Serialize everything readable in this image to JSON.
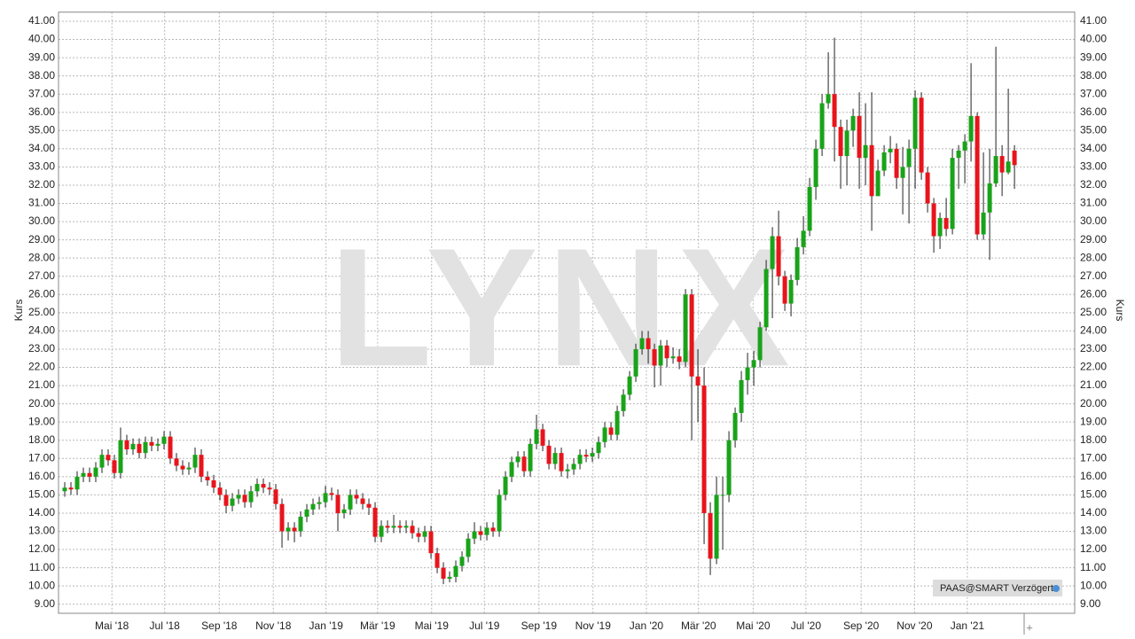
{
  "chart_data": {
    "type": "candlestick",
    "watermark": "LYNX",
    "ylabel": "Kurs",
    "info_label": "PAAS@SMART Verzögert",
    "up_color": "#19a319",
    "down_color": "#e8141c",
    "grid": true,
    "xlim": [
      -1,
      162.7
    ],
    "xticks": [
      {
        "value": 7.6,
        "label": "Mai '18"
      },
      {
        "value": 16.1,
        "label": "Jul '18"
      },
      {
        "value": 24.9,
        "label": "Sep '18"
      },
      {
        "value": 33.6,
        "label": "Nov '18"
      },
      {
        "value": 42.1,
        "label": "Jan '19"
      },
      {
        "value": 50.4,
        "label": "Mär '19"
      },
      {
        "value": 59.1,
        "label": "Mai '19"
      },
      {
        "value": 67.6,
        "label": "Jul '19"
      },
      {
        "value": 76.4,
        "label": "Sep '19"
      },
      {
        "value": 85.1,
        "label": "Nov '19"
      },
      {
        "value": 93.7,
        "label": "Jan '20"
      },
      {
        "value": 102.1,
        "label": "Mär '20"
      },
      {
        "value": 110.9,
        "label": "Mai '20"
      },
      {
        "value": 119.4,
        "label": "Jul '20"
      },
      {
        "value": 128.3,
        "label": "Sep '20"
      },
      {
        "value": 136.9,
        "label": "Nov '20"
      },
      {
        "value": 145.4,
        "label": "Jan '21"
      }
    ],
    "ylim": [
      8.5,
      41.5
    ],
    "yticks": [
      {
        "value": 9,
        "label": "9.00"
      },
      {
        "value": 10,
        "label": "10.00"
      },
      {
        "value": 11,
        "label": "11.00"
      },
      {
        "value": 12,
        "label": "12.00"
      },
      {
        "value": 13,
        "label": "13.00"
      },
      {
        "value": 14,
        "label": "14.00"
      },
      {
        "value": 15,
        "label": "15.00"
      },
      {
        "value": 16,
        "label": "16.00"
      },
      {
        "value": 17,
        "label": "17.00"
      },
      {
        "value": 18,
        "label": "18.00"
      },
      {
        "value": 19,
        "label": "19.00"
      },
      {
        "value": 20,
        "label": "20.00"
      },
      {
        "value": 21,
        "label": "21.00"
      },
      {
        "value": 22,
        "label": "22.00"
      },
      {
        "value": 23,
        "label": "23.00"
      },
      {
        "value": 24,
        "label": "24.00"
      },
      {
        "value": 25,
        "label": "25.00"
      },
      {
        "value": 26,
        "label": "26.00"
      },
      {
        "value": 27,
        "label": "27.00"
      },
      {
        "value": 28,
        "label": "28.00"
      },
      {
        "value": 29,
        "label": "29.00"
      },
      {
        "value": 30,
        "label": "30.00"
      },
      {
        "value": 31,
        "label": "31.00"
      },
      {
        "value": 32,
        "label": "32.00"
      },
      {
        "value": 33,
        "label": "33.00"
      },
      {
        "value": 34,
        "label": "34.00"
      },
      {
        "value": 35,
        "label": "35.00"
      },
      {
        "value": 36,
        "label": "36.00"
      },
      {
        "value": 37,
        "label": "37.00"
      },
      {
        "value": 38,
        "label": "38.00"
      },
      {
        "value": 39,
        "label": "39.00"
      },
      {
        "value": 40,
        "label": "40.00"
      },
      {
        "value": 41,
        "label": "41.00"
      }
    ],
    "open": [
      15.2,
      15.4,
      15.3,
      16.0,
      16.2,
      16.0,
      16.5,
      17.2,
      16.9,
      16.2,
      18.0,
      17.5,
      17.8,
      17.3,
      17.9,
      17.7,
      17.8,
      18.2,
      17.0,
      16.6,
      16.4,
      16.5,
      17.2,
      16.0,
      15.8,
      15.4,
      15.0,
      14.4,
      14.8,
      15.0,
      14.6,
      15.2,
      15.6,
      15.4,
      15.3,
      14.5,
      13.0,
      13.2,
      13.0,
      13.8,
      14.2,
      14.5,
      14.6,
      15.1,
      15.0,
      14.0,
      14.2,
      15.0,
      14.8,
      14.5,
      14.3,
      12.7,
      13.3,
      13.2,
      13.3,
      13.2,
      13.3,
      12.9,
      12.7,
      13.0,
      11.8,
      11.0,
      10.4,
      10.5,
      11.1,
      11.6,
      12.6,
      13.0,
      12.8,
      13.2,
      13.0,
      15.0,
      16.0,
      16.8,
      17.1,
      16.3,
      17.8,
      18.6,
      17.7,
      16.7,
      17.3,
      16.3,
      16.4,
      16.7,
      17.2,
      17.1,
      17.3,
      17.9,
      18.7,
      18.3,
      19.6,
      20.5,
      21.5,
      23.0,
      23.6,
      23.0,
      22.1,
      23.2,
      22.5,
      22.6,
      22.3,
      26.0,
      21.5,
      21.0,
      14.0,
      11.5,
      15.0,
      15.0,
      18.0,
      19.5,
      21.3,
      22.0,
      22.4,
      24.2,
      27.4,
      29.2,
      27.0,
      25.5,
      26.8,
      28.6,
      29.5,
      31.9,
      34.0,
      36.5,
      37.0,
      35.2,
      33.6,
      35.0,
      35.8,
      33.5,
      34.2,
      31.4,
      32.8,
      33.8,
      34.0,
      32.4,
      33.0,
      34.0,
      36.8,
      32.7,
      31.0,
      29.2,
      30.2,
      29.6,
      33.5,
      33.9,
      34.4,
      35.8,
      29.3,
      30.5,
      32.1,
      33.6,
      32.7,
      33.9
    ],
    "high": [
      15.7,
      15.7,
      16.3,
      16.5,
      16.5,
      16.8,
      17.5,
      17.5,
      17.2,
      18.7,
      18.3,
      18.1,
      18.1,
      18.2,
      18.2,
      18.1,
      18.5,
      18.5,
      17.3,
      16.9,
      16.8,
      17.6,
      17.5,
      16.3,
      16.1,
      15.7,
      15.3,
      15.1,
      15.3,
      15.3,
      15.5,
      15.9,
      15.9,
      15.7,
      15.6,
      14.8,
      13.5,
      13.5,
      14.1,
      14.5,
      14.8,
      14.9,
      15.5,
      15.4,
      15.3,
      14.5,
      15.3,
      15.3,
      15.1,
      14.8,
      14.6,
      13.6,
      13.6,
      13.9,
      13.6,
      13.6,
      13.6,
      13.2,
      13.3,
      13.3,
      12.1,
      11.3,
      10.8,
      11.4,
      11.9,
      12.9,
      13.5,
      13.3,
      13.5,
      13.5,
      15.3,
      16.3,
      17.1,
      17.4,
      17.4,
      18.1,
      19.4,
      18.9,
      18.0,
      17.6,
      17.6,
      16.7,
      17.0,
      17.5,
      17.5,
      17.6,
      18.2,
      19.0,
      19.0,
      19.9,
      20.8,
      21.8,
      23.3,
      24.0,
      24.0,
      23.3,
      23.5,
      23.5,
      23.1,
      23.0,
      26.3,
      26.3,
      23.0,
      22.0,
      14.6,
      16.0,
      16.0,
      18.5,
      19.8,
      21.8,
      22.8,
      22.9,
      24.5,
      27.9,
      29.7,
      30.6,
      27.3,
      27.1,
      29.1,
      30.3,
      32.4,
      34.5,
      37.0,
      39.3,
      40.1,
      35.6,
      35.6,
      36.2,
      37.1,
      36.5,
      37.1,
      33.4,
      34.2,
      34.7,
      34.3,
      34.1,
      34.5,
      37.2,
      37.1,
      33.0,
      31.3,
      30.5,
      31.3,
      34.0,
      34.2,
      34.8,
      38.7,
      36.0,
      33.8,
      34.0,
      39.6,
      34.2,
      37.3,
      34.2
    ],
    "low": [
      14.9,
      15.0,
      15.0,
      15.7,
      15.7,
      15.7,
      16.2,
      16.6,
      15.9,
      15.9,
      17.2,
      17.2,
      17.0,
      17.0,
      17.4,
      17.4,
      17.5,
      16.7,
      16.3,
      16.1,
      16.1,
      16.2,
      15.7,
      15.5,
      15.1,
      14.7,
      14.0,
      14.1,
      14.5,
      14.3,
      14.3,
      14.9,
      15.1,
      15.0,
      14.2,
      12.1,
      12.5,
      12.4,
      12.7,
      13.5,
      13.9,
      14.2,
      14.3,
      14.7,
      13.0,
      13.7,
      13.9,
      14.5,
      14.2,
      13.9,
      12.4,
      12.4,
      12.9,
      12.9,
      12.9,
      12.9,
      12.6,
      12.4,
      12.4,
      11.5,
      10.7,
      10.1,
      10.2,
      10.2,
      10.8,
      11.3,
      12.3,
      12.5,
      12.5,
      12.7,
      12.7,
      14.7,
      15.7,
      16.5,
      16.0,
      16.0,
      17.5,
      17.4,
      16.4,
      16.4,
      16.0,
      15.9,
      16.1,
      16.4,
      16.8,
      16.8,
      17.0,
      17.6,
      18.0,
      18.0,
      19.3,
      20.2,
      21.2,
      22.7,
      22.2,
      20.9,
      21.0,
      22.0,
      22.2,
      21.9,
      22.0,
      18.0,
      19.0,
      12.3,
      10.6,
      11.2,
      12.0,
      14.6,
      17.6,
      19.0,
      20.5,
      21.0,
      22.0,
      24.0,
      24.7,
      26.5,
      25.1,
      24.8,
      26.5,
      28.2,
      29.2,
      31.2,
      33.6,
      36.2,
      33.3,
      31.8,
      32.0,
      34.1,
      31.8,
      32.0,
      29.5,
      31.4,
      32.5,
      33.2,
      31.8,
      30.4,
      29.9,
      31.8,
      32.3,
      30.5,
      28.3,
      28.5,
      29.2,
      29.3,
      31.8,
      32.1,
      33.3,
      29.0,
      29.0,
      27.9,
      31.9,
      31.4,
      32.6,
      31.8
    ],
    "close": [
      15.4,
      15.3,
      16.0,
      16.2,
      16.0,
      16.5,
      17.2,
      16.9,
      16.2,
      18.0,
      17.5,
      17.8,
      17.3,
      17.9,
      17.7,
      17.8,
      18.2,
      17.0,
      16.6,
      16.4,
      16.5,
      17.2,
      16.0,
      15.8,
      15.4,
      15.0,
      14.4,
      14.8,
      15.0,
      14.6,
      15.2,
      15.6,
      15.4,
      15.3,
      14.5,
      13.0,
      13.2,
      13.0,
      13.8,
      14.2,
      14.5,
      14.6,
      15.1,
      15.0,
      14.0,
      14.2,
      15.0,
      14.8,
      14.5,
      14.3,
      12.7,
      13.3,
      13.2,
      13.3,
      13.2,
      13.3,
      12.9,
      12.7,
      13.0,
      11.8,
      11.0,
      10.4,
      10.5,
      11.1,
      11.6,
      12.6,
      13.0,
      12.8,
      13.2,
      13.0,
      15.0,
      16.0,
      16.8,
      17.1,
      16.3,
      17.8,
      18.6,
      17.7,
      16.7,
      17.3,
      16.3,
      16.4,
      16.7,
      17.2,
      17.1,
      17.3,
      17.9,
      18.7,
      18.3,
      19.6,
      20.5,
      21.5,
      23.0,
      23.6,
      23.0,
      22.1,
      23.2,
      22.5,
      22.6,
      22.3,
      26.0,
      21.5,
      21.0,
      14.0,
      11.5,
      15.0,
      15.0,
      18.0,
      19.5,
      21.3,
      22.0,
      22.4,
      24.2,
      27.4,
      29.2,
      27.0,
      25.5,
      26.8,
      28.6,
      29.5,
      31.9,
      34.0,
      36.5,
      37.0,
      35.2,
      33.6,
      35.0,
      35.8,
      33.5,
      34.2,
      31.4,
      32.8,
      33.8,
      34.0,
      32.4,
      33.0,
      34.0,
      36.8,
      32.7,
      31.0,
      29.2,
      30.2,
      29.6,
      33.5,
      33.9,
      34.4,
      35.8,
      29.3,
      30.5,
      32.1,
      33.6,
      32.7,
      33.3,
      33.1
    ]
  }
}
